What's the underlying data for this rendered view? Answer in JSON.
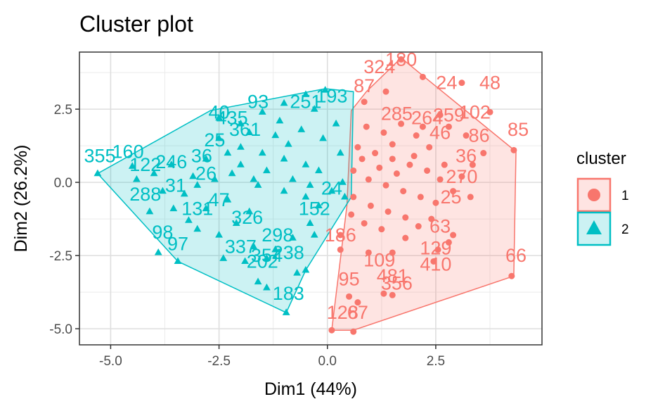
{
  "chart_data": {
    "type": "scatter",
    "title": "Cluster plot",
    "xlabel": "Dim1 (44%)",
    "ylabel": "Dim2 (26.2%)",
    "xlim": [
      -5.72,
      4.95
    ],
    "ylim": [
      -5.55,
      4.45
    ],
    "xticks": [
      {
        "value": -5.0,
        "label": "-5.0"
      },
      {
        "value": -2.5,
        "label": "-2.5"
      },
      {
        "value": 0.0,
        "label": "0.0"
      },
      {
        "value": 2.5,
        "label": "2.5"
      }
    ],
    "yticks": [
      {
        "value": 2.5,
        "label": "2.5"
      },
      {
        "value": 0.0,
        "label": "0.0"
      },
      {
        "value": -2.5,
        "label": "-2.5"
      },
      {
        "value": -5.0,
        "label": "-5.0"
      }
    ],
    "grid": true,
    "legend": {
      "title": "cluster",
      "placement": "right",
      "items": [
        {
          "label": "1",
          "color": "#F8766D",
          "shape": "circle"
        },
        {
          "label": "2",
          "color": "#00BFC4",
          "shape": "triangle"
        }
      ]
    },
    "series": [
      {
        "name": "1",
        "color": "#F8766D",
        "marker": "circle",
        "hull": [
          [
            1.7,
            4.25
          ],
          [
            4.35,
            1.05
          ],
          [
            4.3,
            -3.2
          ],
          [
            0.6,
            -5.05
          ],
          [
            0.1,
            -5.05
          ],
          [
            0.45,
            -0.8
          ],
          [
            0.55,
            2.45
          ],
          [
            0.9,
            3.1
          ]
        ],
        "points": [
          [
            1.7,
            4.2
          ],
          [
            4.3,
            1.1
          ],
          [
            4.25,
            -3.2
          ],
          [
            0.6,
            -5.1
          ],
          [
            0.1,
            -5.05
          ],
          [
            3.1,
            3.4
          ],
          [
            3.75,
            2.4
          ],
          [
            3.2,
            1.6
          ],
          [
            2.2,
            3.6
          ],
          [
            1.5,
            -3.85
          ],
          [
            1.3,
            -3.8
          ],
          [
            0.5,
            -3.9
          ],
          [
            0.7,
            -4.1
          ],
          [
            2.55,
            -2.3
          ],
          [
            2.8,
            -2.05
          ],
          [
            2.45,
            -2.7
          ],
          [
            2.9,
            -1.8
          ],
          [
            0.3,
            -1.8
          ],
          [
            0.3,
            -2.3
          ],
          [
            0.95,
            -2.4
          ],
          [
            1.5,
            -2.4
          ],
          [
            1.8,
            -1.9
          ],
          [
            2.1,
            -1.5
          ],
          [
            2.4,
            -1.25
          ],
          [
            3.3,
            -0.5
          ],
          [
            3.1,
            0.2
          ],
          [
            3.35,
            0.6
          ],
          [
            3.6,
            1.0
          ],
          [
            2.8,
            1.9
          ],
          [
            2.6,
            2.3
          ],
          [
            0.85,
            2.75
          ],
          [
            1.35,
            3.1
          ],
          [
            0.9,
            1.9
          ],
          [
            1.3,
            1.7
          ],
          [
            1.7,
            2.0
          ],
          [
            2.05,
            1.6
          ],
          [
            2.35,
            1.2
          ],
          [
            0.7,
            1.2
          ],
          [
            1.1,
            1.0
          ],
          [
            1.5,
            0.8
          ],
          [
            1.9,
            0.6
          ],
          [
            2.3,
            0.4
          ],
          [
            2.6,
            0.1
          ],
          [
            0.6,
            0.4
          ],
          [
            0.95,
            0.1
          ],
          [
            1.35,
            -0.1
          ],
          [
            1.75,
            -0.3
          ],
          [
            2.15,
            -0.5
          ],
          [
            2.5,
            -0.7
          ],
          [
            0.6,
            -0.5
          ],
          [
            1.0,
            -0.8
          ],
          [
            1.4,
            -1.0
          ],
          [
            1.8,
            -1.2
          ],
          [
            0.55,
            -1.1
          ],
          [
            0.85,
            -1.4
          ],
          [
            1.25,
            -1.6
          ],
          [
            1.6,
            0.3
          ],
          [
            2.0,
            0.9
          ],
          [
            1.2,
            0.5
          ],
          [
            0.8,
            0.8
          ],
          [
            2.7,
            0.6
          ],
          [
            2.9,
            -0.3
          ],
          [
            2.2,
            1.9
          ],
          [
            1.5,
            1.3
          ]
        ],
        "labels": [
          {
            "x": 1.7,
            "y": 4.2,
            "text": "180"
          },
          {
            "x": 3.75,
            "y": 3.4,
            "text": "48"
          },
          {
            "x": 2.75,
            "y": 3.4,
            "text": "24"
          },
          {
            "x": 1.2,
            "y": 3.95,
            "text": "324"
          },
          {
            "x": 4.4,
            "y": 1.8,
            "text": "85"
          },
          {
            "x": 3.4,
            "y": 2.4,
            "text": "102"
          },
          {
            "x": 2.8,
            "y": 2.3,
            "text": "259"
          },
          {
            "x": 3.5,
            "y": 1.6,
            "text": "86"
          },
          {
            "x": 1.6,
            "y": 2.35,
            "text": "285"
          },
          {
            "x": 2.3,
            "y": 2.2,
            "text": "264"
          },
          {
            "x": 2.6,
            "y": 1.7,
            "text": "46"
          },
          {
            "x": 3.2,
            "y": 0.9,
            "text": "36"
          },
          {
            "x": 3.1,
            "y": 0.2,
            "text": "270"
          },
          {
            "x": 2.85,
            "y": -0.5,
            "text": "25"
          },
          {
            "x": 2.6,
            "y": -1.5,
            "text": "63"
          },
          {
            "x": 2.5,
            "y": -2.25,
            "text": "129"
          },
          {
            "x": 2.5,
            "y": -2.8,
            "text": "410"
          },
          {
            "x": 1.2,
            "y": -2.65,
            "text": "109"
          },
          {
            "x": 1.5,
            "y": -3.2,
            "text": "481"
          },
          {
            "x": 1.6,
            "y": -3.45,
            "text": "356"
          },
          {
            "x": 0.5,
            "y": -3.3,
            "text": "95"
          },
          {
            "x": 0.35,
            "y": -4.45,
            "text": "128"
          },
          {
            "x": 0.7,
            "y": -4.45,
            "text": "67"
          },
          {
            "x": 4.35,
            "y": -2.5,
            "text": "66"
          },
          {
            "x": 0.3,
            "y": -1.8,
            "text": "186"
          },
          {
            "x": 0.85,
            "y": 3.3,
            "text": "87"
          }
        ]
      },
      {
        "name": "2",
        "color": "#00BFC4",
        "marker": "triangle",
        "hull": [
          [
            -5.3,
            0.3
          ],
          [
            -3.45,
            -2.7
          ],
          [
            -0.95,
            -4.45
          ],
          [
            -0.5,
            -3.0
          ],
          [
            0.55,
            -0.5
          ],
          [
            0.6,
            3.1
          ],
          [
            -0.05,
            3.2
          ],
          [
            -2.7,
            2.45
          ]
        ],
        "points": [
          [
            -5.3,
            0.3
          ],
          [
            -4.4,
            0.1
          ],
          [
            -4.1,
            -1.0
          ],
          [
            -3.9,
            -2.4
          ],
          [
            -3.45,
            -2.7
          ],
          [
            -0.95,
            -4.45
          ],
          [
            -0.5,
            -3.0
          ],
          [
            -4.5,
            0.55
          ],
          [
            -3.6,
            0.6
          ],
          [
            -3.1,
            0.2
          ],
          [
            -3.3,
            -0.4
          ],
          [
            -2.8,
            -0.9
          ],
          [
            -3.0,
            -1.6
          ],
          [
            -2.3,
            -0.6
          ],
          [
            -1.8,
            -1.0
          ],
          [
            -2.5,
            -1.8
          ],
          [
            -2.1,
            -1.4
          ],
          [
            -1.7,
            -2.2
          ],
          [
            -1.4,
            -2.6
          ],
          [
            -1.9,
            -2.7
          ],
          [
            -2.4,
            -2.6
          ],
          [
            -1.2,
            -2.3
          ],
          [
            -0.8,
            -1.9
          ],
          [
            -0.4,
            -1.4
          ],
          [
            -0.2,
            -0.8
          ],
          [
            -0.7,
            -3.1
          ],
          [
            -1.6,
            -3.4
          ],
          [
            -1.4,
            -3.6
          ],
          [
            -0.3,
            -1.8
          ],
          [
            -3.8,
            -0.3
          ],
          [
            -4.0,
            0.3
          ],
          [
            -3.55,
            -0.9
          ],
          [
            -3.2,
            -1.3
          ],
          [
            -2.0,
            2.0
          ],
          [
            -1.5,
            2.4
          ],
          [
            -1.0,
            2.7
          ],
          [
            -0.5,
            3.0
          ],
          [
            -0.05,
            3.15
          ],
          [
            -2.5,
            1.5
          ],
          [
            -2.0,
            1.2
          ],
          [
            -1.5,
            1.0
          ],
          [
            -1.0,
            0.8
          ],
          [
            -0.5,
            0.6
          ],
          [
            0.2,
            2.0
          ],
          [
            0.3,
            1.0
          ],
          [
            0.35,
            0.0
          ],
          [
            0.4,
            -0.5
          ],
          [
            -2.8,
            0.8
          ],
          [
            -2.2,
            0.3
          ],
          [
            -1.6,
            -0.1
          ],
          [
            -1.0,
            -0.3
          ],
          [
            -0.5,
            -0.5
          ],
          [
            -2.5,
            2.2
          ],
          [
            -1.8,
            1.7
          ],
          [
            -1.2,
            1.6
          ],
          [
            -0.6,
            1.8
          ],
          [
            -0.1,
            1.5
          ],
          [
            -0.2,
            0.4
          ],
          [
            -0.8,
            0.1
          ],
          [
            -1.4,
            0.4
          ],
          [
            -2.0,
            0.6
          ],
          [
            -2.6,
            0.1
          ],
          [
            -3.0,
            -0.1
          ],
          [
            -0.3,
            2.5
          ],
          [
            0.1,
            -0.3
          ],
          [
            -1.1,
            2.1
          ],
          [
            -1.7,
            0.1
          ],
          [
            -0.9,
            1.3
          ],
          [
            -2.3,
            1.0
          ],
          [
            -0.4,
            -0.1
          ]
        ],
        "labels": [
          {
            "x": -5.25,
            "y": 0.9,
            "text": "355"
          },
          {
            "x": -4.6,
            "y": 1.05,
            "text": "160"
          },
          {
            "x": -4.2,
            "y": 0.6,
            "text": "122"
          },
          {
            "x": -3.6,
            "y": 0.7,
            "text": "246"
          },
          {
            "x": -4.2,
            "y": -0.4,
            "text": "288"
          },
          {
            "x": -3.8,
            "y": -1.7,
            "text": "98"
          },
          {
            "x": -3.45,
            "y": -2.1,
            "text": "97"
          },
          {
            "x": -3.5,
            "y": -0.1,
            "text": "31"
          },
          {
            "x": -3.0,
            "y": -0.9,
            "text": "131"
          },
          {
            "x": -2.5,
            "y": -0.6,
            "text": "47"
          },
          {
            "x": -1.85,
            "y": -1.2,
            "text": "326"
          },
          {
            "x": -1.15,
            "y": -1.8,
            "text": "298"
          },
          {
            "x": -2.0,
            "y": -2.2,
            "text": "337"
          },
          {
            "x": -1.4,
            "y": -2.5,
            "text": "354"
          },
          {
            "x": -1.5,
            "y": -2.7,
            "text": "202"
          },
          {
            "x": -0.9,
            "y": -2.4,
            "text": "238"
          },
          {
            "x": -0.9,
            "y": -3.8,
            "text": "183"
          },
          {
            "x": -2.5,
            "y": 2.4,
            "text": "40"
          },
          {
            "x": -1.6,
            "y": 2.75,
            "text": "93"
          },
          {
            "x": -0.5,
            "y": 2.75,
            "text": "251"
          },
          {
            "x": 0.1,
            "y": 2.95,
            "text": "193"
          },
          {
            "x": -2.2,
            "y": 2.2,
            "text": "435"
          },
          {
            "x": -1.9,
            "y": 1.8,
            "text": "361"
          },
          {
            "x": -2.6,
            "y": 1.45,
            "text": "25"
          },
          {
            "x": -2.9,
            "y": 0.9,
            "text": "36"
          },
          {
            "x": -2.8,
            "y": 0.3,
            "text": "26"
          },
          {
            "x": -0.3,
            "y": -0.9,
            "text": "152"
          },
          {
            "x": 0.1,
            "y": -0.2,
            "text": "24"
          }
        ]
      }
    ]
  }
}
